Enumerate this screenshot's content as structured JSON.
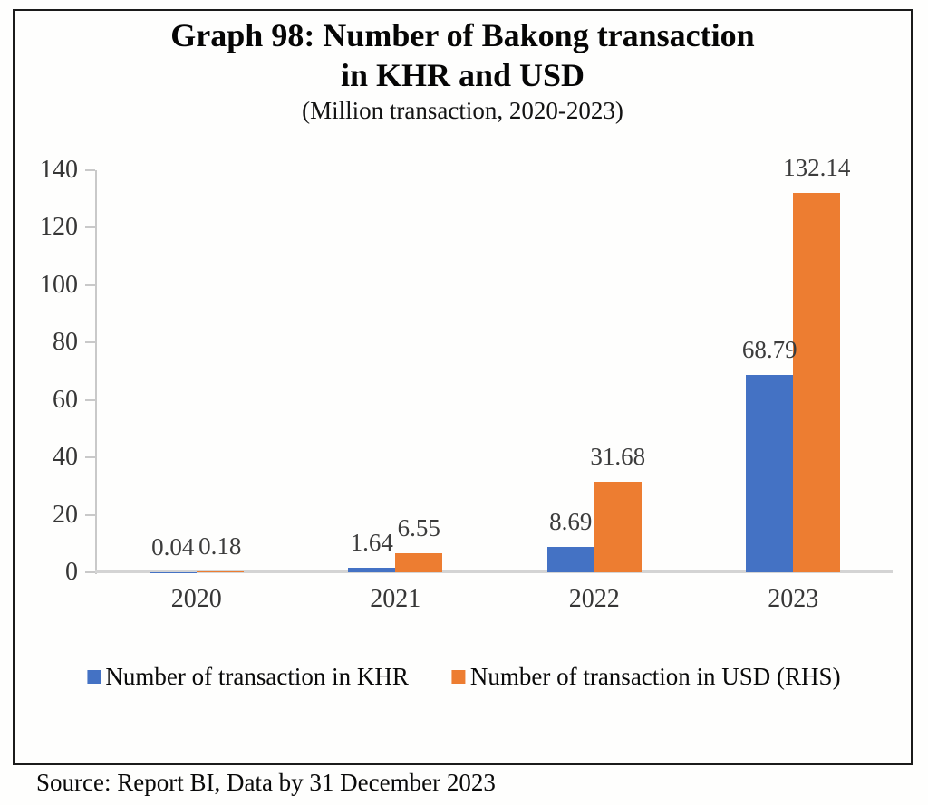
{
  "title": {
    "line1": "Graph 98: Number of Bakong transaction",
    "line2": "in KHR and USD",
    "subtitle": "(Million transaction, 2020-2023)"
  },
  "legend": [
    {
      "label": "Number of transaction in KHR",
      "color": "#4472C4"
    },
    {
      "label": "Number of transaction in USD (RHS)",
      "color": "#ED7D31"
    }
  ],
  "source": "Source: Report BI, Data by 31 December 2023",
  "colors": {
    "khr_bar": "#4472C4",
    "usd_bar": "#ED7D31",
    "axis_line": "#c9c9c9",
    "frame_border": "#1b1b1b"
  },
  "chart_data": {
    "type": "bar",
    "title": "Graph 98: Number of Bakong transaction in KHR and USD",
    "subtitle": "(Million transaction, 2020-2023)",
    "categories": [
      "2020",
      "2021",
      "2022",
      "2023"
    ],
    "series": [
      {
        "name": "Number of transaction in KHR",
        "color": "#4472C4",
        "values": [
          0.04,
          1.64,
          8.69,
          68.79
        ],
        "labels": [
          "0.04",
          "1.64",
          "8.69",
          "68.79"
        ]
      },
      {
        "name": "Number of transaction in USD (RHS)",
        "color": "#ED7D31",
        "values": [
          0.18,
          6.55,
          31.68,
          132.14
        ],
        "labels": [
          "0.18",
          "6.55",
          "31.68",
          "132.14"
        ]
      }
    ],
    "xlabel": "",
    "ylabel": "",
    "ylim": [
      0,
      140
    ],
    "ytick_step": 20,
    "yticks": [
      0,
      20,
      40,
      60,
      80,
      100,
      120,
      140
    ],
    "grid": false,
    "legend_position": "bottom",
    "data_labels": true
  }
}
